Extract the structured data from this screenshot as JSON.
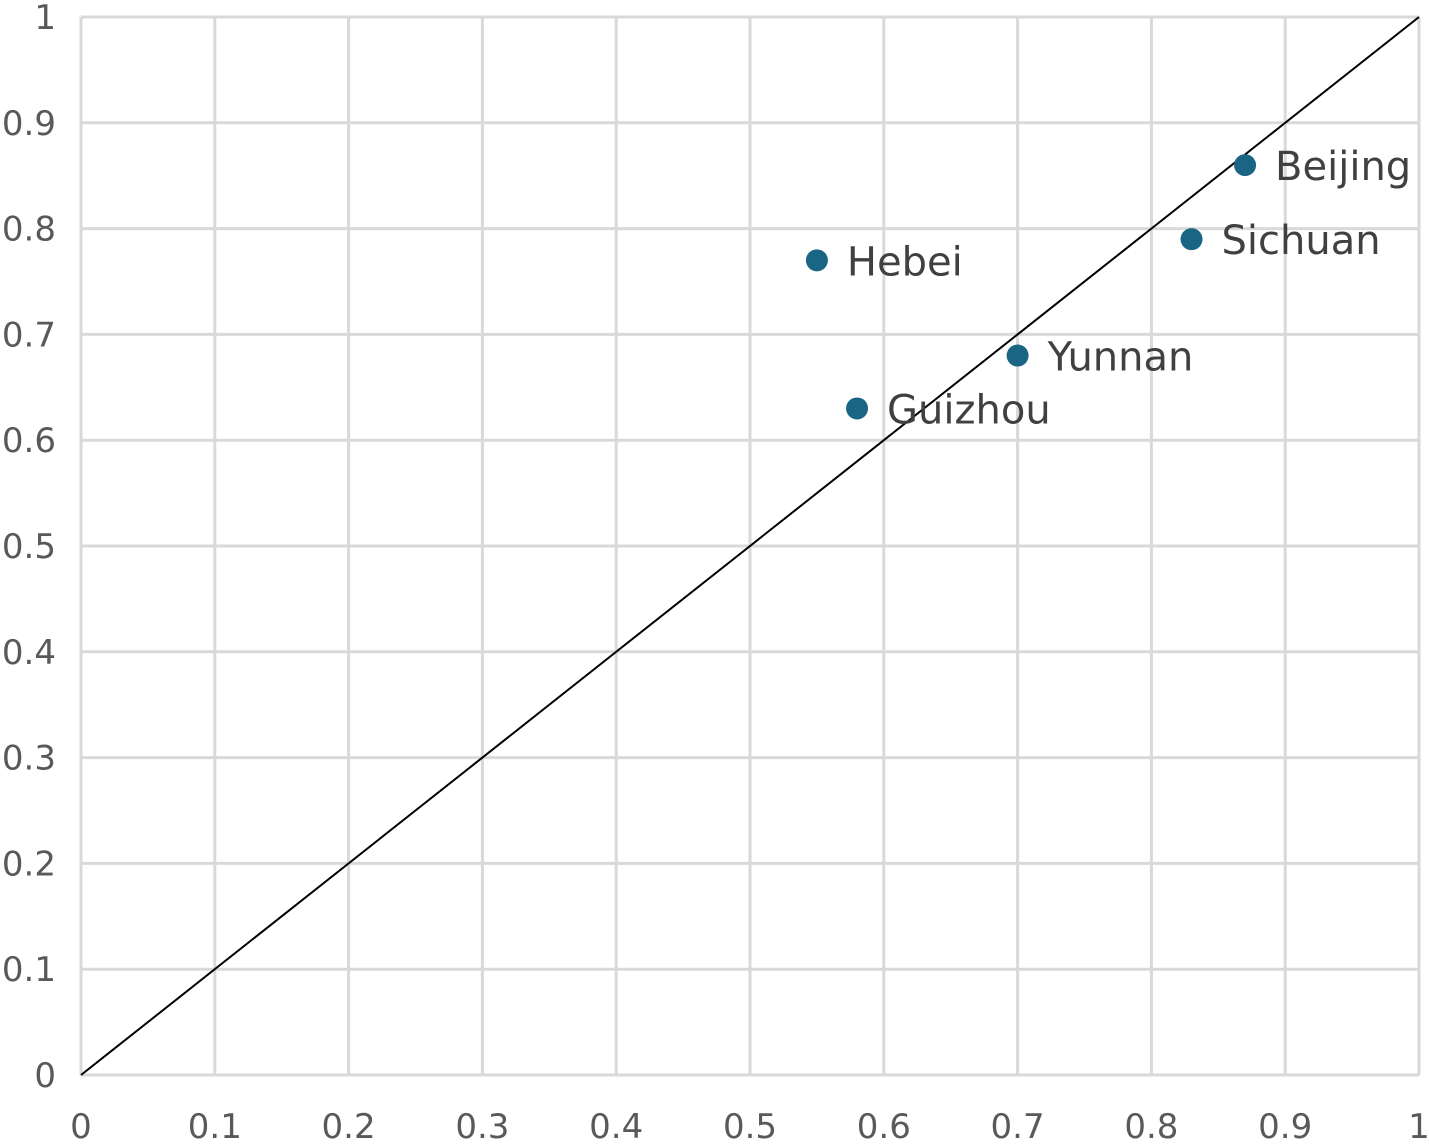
{
  "chart_data": {
    "type": "scatter",
    "title": "",
    "xlabel": "",
    "ylabel": "",
    "xlim": [
      0,
      1
    ],
    "ylim": [
      0,
      1
    ],
    "x_ticks": [
      "0",
      "0.1",
      "0.2",
      "0.3",
      "0.4",
      "0.5",
      "0.6",
      "0.7",
      "0.8",
      "0.9",
      "1"
    ],
    "y_ticks": [
      "0",
      "0.1",
      "0.2",
      "0.3",
      "0.4",
      "0.5",
      "0.6",
      "0.7",
      "0.8",
      "0.9",
      "1"
    ],
    "grid": true,
    "legend": "none",
    "reference_line": {
      "from": [
        0,
        0
      ],
      "to": [
        1,
        1
      ],
      "color": "#000000"
    },
    "marker_color": "#1b6584",
    "points": [
      {
        "label": "Beijing",
        "x": 0.87,
        "y": 0.86
      },
      {
        "label": "Sichuan",
        "x": 0.83,
        "y": 0.79
      },
      {
        "label": "Hebei",
        "x": 0.55,
        "y": 0.77
      },
      {
        "label": "Yunnan",
        "x": 0.7,
        "y": 0.68
      },
      {
        "label": "Guizhou",
        "x": 0.58,
        "y": 0.63
      }
    ]
  }
}
